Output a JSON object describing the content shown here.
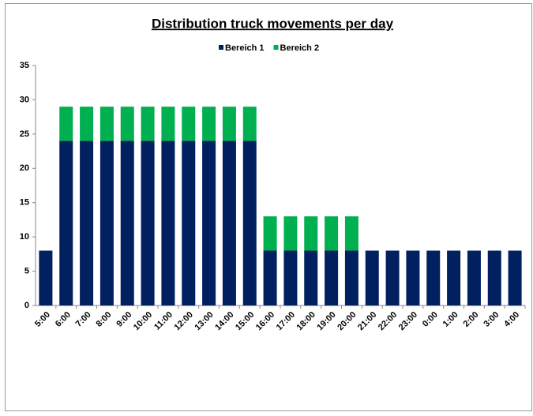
{
  "chart_data": {
    "type": "stacked_bar",
    "title": "Distribution truck movements per day",
    "categories": [
      "5:00",
      "6:00",
      "7:00",
      "8:00",
      "9:00",
      "10:00",
      "11:00",
      "12:00",
      "13:00",
      "14:00",
      "15:00",
      "16:00",
      "17:00",
      "18:00",
      "19:00",
      "20:00",
      "21:00",
      "22:00",
      "23:00",
      "0:00",
      "1:00",
      "2:00",
      "3:00",
      "4:00"
    ],
    "series": [
      {
        "name": "Bereich 1",
        "color": "#002060",
        "values": [
          8,
          24,
          24,
          24,
          24,
          24,
          24,
          24,
          24,
          24,
          24,
          8,
          8,
          8,
          8,
          8,
          8,
          8,
          8,
          8,
          8,
          8,
          8,
          8
        ]
      },
      {
        "name": "Bereich 2",
        "color": "#00b050",
        "values": [
          0,
          5,
          5,
          5,
          5,
          5,
          5,
          5,
          5,
          5,
          5,
          5,
          5,
          5,
          5,
          5,
          0,
          0,
          0,
          0,
          0,
          0,
          0,
          0
        ]
      }
    ],
    "ylim": [
      0,
      35
    ],
    "yticks": [
      0,
      5,
      10,
      15,
      20,
      25,
      30,
      35
    ],
    "grid": false,
    "legend": "top"
  }
}
